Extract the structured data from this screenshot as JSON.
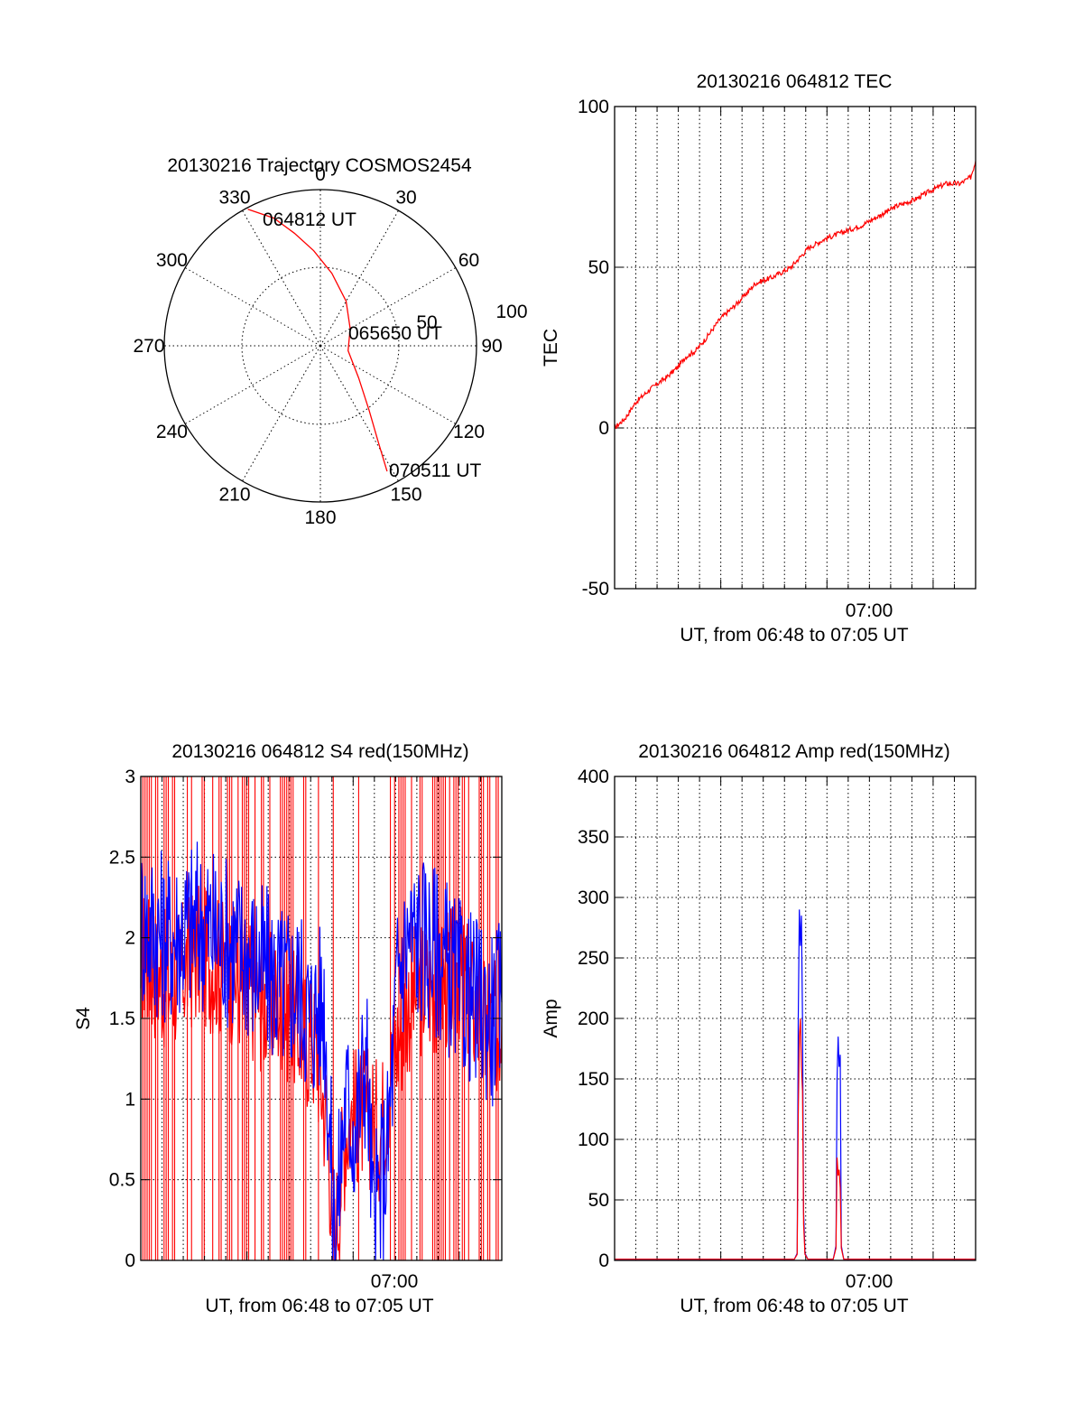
{
  "chart_data": [
    {
      "type": "polar",
      "title": "20130216 Trajectory COSMOS2454",
      "angle_labels": [
        "0",
        "30",
        "60",
        "90",
        "120",
        "150",
        "180",
        "210",
        "240",
        "270",
        "300",
        "330"
      ],
      "radial_labels": [
        "50",
        "100"
      ],
      "radial_range": [
        0,
        100
      ],
      "grid": true,
      "series": [
        {
          "color": "#ff0000",
          "points": [
            {
              "az": 332,
              "r": 99
            },
            {
              "az": 340,
              "r": 87
            },
            {
              "az": 347,
              "r": 74
            },
            {
              "az": 356,
              "r": 61
            },
            {
              "az": 9,
              "r": 47
            },
            {
              "az": 30,
              "r": 33
            },
            {
              "az": 60,
              "r": 22
            },
            {
              "az": 100,
              "r": 18
            },
            {
              "az": 130,
              "r": 32
            },
            {
              "az": 143,
              "r": 52
            },
            {
              "az": 149,
              "r": 72
            },
            {
              "az": 152,
              "r": 91
            }
          ]
        }
      ],
      "annotations": [
        {
          "text": "064812 UT",
          "az": 332,
          "r": 99
        },
        {
          "text": "065650 UT",
          "az": 100,
          "r": 18
        },
        {
          "text": "070511 UT",
          "az": 152,
          "r": 91
        }
      ]
    },
    {
      "type": "line",
      "title": "20130216 064812 TEC",
      "xlabel": "UT, from 06:48 to 07:05 UT",
      "ylabel": "TEC",
      "xlim": [
        0,
        1024
      ],
      "ylim": [
        -50,
        100
      ],
      "yticks": [
        "-50",
        "0",
        "50",
        "100"
      ],
      "xtick_labels": [
        {
          "x": 720,
          "label": "07:00"
        }
      ],
      "grid": true,
      "series": [
        {
          "color": "#ff0000",
          "x": [
            0,
            30,
            60,
            100,
            150,
            180,
            200,
            230,
            260,
            300,
            350,
            400,
            450,
            500,
            550,
            600,
            650,
            700,
            750,
            800,
            850,
            900,
            940,
            980,
            1010,
            1024
          ],
          "values": [
            0,
            3,
            8,
            12,
            16,
            19,
            22,
            24,
            28,
            34,
            39,
            45,
            47,
            50,
            56,
            59,
            61,
            63,
            66,
            69,
            71,
            74,
            76,
            76,
            78,
            83
          ]
        }
      ]
    },
    {
      "type": "line",
      "title": "20130216 064812 S4 red(150MHz)",
      "xlabel": "UT, from 06:48 to 07:05 UT",
      "ylabel": "S4",
      "xlim": [
        0,
        1024
      ],
      "ylim": [
        0,
        3
      ],
      "yticks": [
        "0",
        "0.5",
        "1",
        "1.5",
        "2",
        "2.5",
        "3"
      ],
      "xtick_labels": [
        {
          "x": 720,
          "label": "07:00"
        }
      ],
      "grid": true,
      "series": [
        {
          "color": "#ff0000",
          "x": [
            0,
            80,
            160,
            240,
            300,
            350,
            400,
            460,
            500,
            530,
            550,
            580,
            600,
            640,
            680,
            720,
            760,
            800,
            850,
            900,
            960,
            1000,
            1024
          ],
          "values": [
            1.9,
            1.7,
            1.9,
            1.8,
            1.7,
            1.6,
            1.6,
            1.4,
            1.3,
            0.8,
            0.1,
            0.8,
            0.9,
            0.9,
            0.8,
            1.3,
            1.6,
            1.7,
            1.7,
            1.8,
            1.5,
            1.4,
            1.5
          ]
        },
        {
          "color": "#0000ff",
          "x": [
            0,
            80,
            160,
            240,
            300,
            350,
            400,
            450,
            480,
            520,
            550,
            580,
            610,
            640,
            660,
            700,
            730,
            760,
            800,
            850,
            900,
            950,
            1000,
            1024
          ],
          "values": [
            2.1,
            2.0,
            2.1,
            2.0,
            1.9,
            1.8,
            1.7,
            1.7,
            1.5,
            1.6,
            0.1,
            1.0,
            0.8,
            1.3,
            0.2,
            0.7,
            1.8,
            2.0,
            2.0,
            1.9,
            1.7,
            1.6,
            1.5,
            1.6
          ]
        }
      ]
    },
    {
      "type": "line",
      "title": "20130216 064812 Amp red(150MHz)",
      "xlabel": "UT, from 06:48 to 07:05 UT",
      "ylabel": "Amp",
      "xlim": [
        0,
        1024
      ],
      "ylim": [
        0,
        400
      ],
      "yticks": [
        "0",
        "50",
        "100",
        "150",
        "200",
        "250",
        "300",
        "350",
        "400"
      ],
      "xtick_labels": [
        {
          "x": 720,
          "label": "07:00"
        }
      ],
      "grid": true,
      "series": [
        {
          "color": "#ff0000",
          "x": [
            0,
            400,
            510,
            518,
            521,
            524,
            527,
            530,
            533,
            536,
            540,
            548,
            620,
            628,
            631,
            634,
            637,
            640,
            643,
            650,
            700,
            1024
          ],
          "values": [
            1,
            1,
            1,
            5,
            120,
            185,
            200,
            160,
            140,
            30,
            5,
            1,
            1,
            10,
            85,
            70,
            75,
            60,
            10,
            1,
            1,
            1
          ]
        },
        {
          "color": "#0000ff",
          "x": [
            0,
            400,
            510,
            518,
            521,
            524,
            527,
            530,
            533,
            536,
            540,
            548,
            620,
            628,
            631,
            634,
            637,
            640,
            643,
            650,
            700,
            1024
          ],
          "values": [
            1,
            1,
            1,
            6,
            200,
            290,
            260,
            285,
            200,
            40,
            6,
            1,
            1,
            12,
            150,
            185,
            160,
            170,
            12,
            1,
            1,
            1
          ]
        }
      ]
    }
  ]
}
